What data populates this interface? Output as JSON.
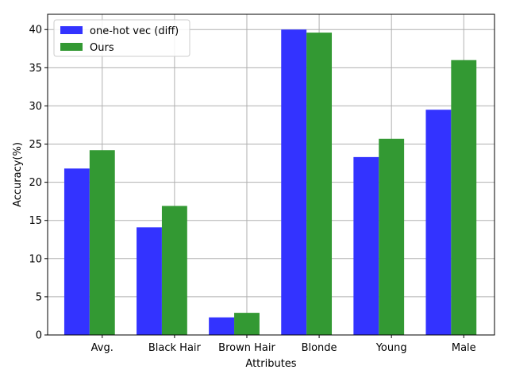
{
  "chart_data": {
    "type": "bar",
    "categories": [
      "Avg.",
      "Black Hair",
      "Brown Hair",
      "Blonde",
      "Young",
      "Male"
    ],
    "series": [
      {
        "name": "one-hot vec (diff)",
        "values": [
          21.8,
          14.1,
          2.3,
          40.0,
          23.3,
          29.5
        ],
        "color": "#3333ff"
      },
      {
        "name": "Ours",
        "values": [
          24.2,
          16.9,
          2.9,
          39.6,
          25.7,
          36.0
        ],
        "color": "#339933"
      }
    ],
    "xlabel": "Attributes",
    "ylabel": "Accuracy(%)",
    "ylim": [
      0,
      42
    ],
    "yticks": [
      0,
      5,
      10,
      15,
      20,
      25,
      30,
      35,
      40
    ],
    "grid": true,
    "legend_position": "upper-left"
  }
}
